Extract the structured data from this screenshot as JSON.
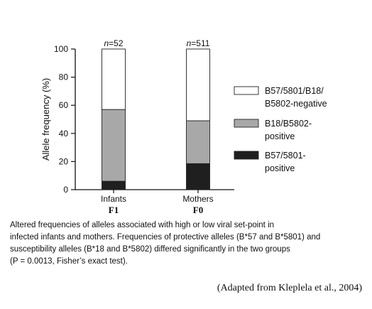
{
  "chart_data": {
    "type": "bar",
    "stacked": true,
    "ylabel": "Allele frequency (%)",
    "ylim": [
      0,
      100
    ],
    "yticks": [
      "0",
      "20",
      "40",
      "60",
      "80",
      "100"
    ],
    "categories": [
      "Infants",
      "Mothers"
    ],
    "category_sublabels": [
      "F1",
      "F0"
    ],
    "bar_annotations": [
      "n=52",
      "n=511"
    ],
    "series": [
      {
        "name": "B57/5801-positive",
        "legend_lines": [
          "B57/5801-",
          "positive"
        ],
        "color": "#1f1f1f",
        "values": [
          6,
          18.5
        ]
      },
      {
        "name": "B18/B5802-positive",
        "legend_lines": [
          "B18/B5802-",
          "positive"
        ],
        "color": "#a8a8a8",
        "values": [
          51,
          30.5
        ]
      },
      {
        "name": "B57/5801/B18/B5802-negative",
        "legend_lines": [
          "B57/5801/B18/",
          "B5802-negative"
        ],
        "color": "#ffffff",
        "values": [
          43,
          51
        ]
      }
    ],
    "legend_position": "right",
    "grid": false
  },
  "caption": {
    "lines": [
      "Altered frequencies of alleles associated with high or low viral set-point in",
      "infected infants and mothers. Frequencies of protective alleles (B*57 and B*5801) and",
      "susceptibility alleles (B*18 and B*5802) differed significantly in the two groups",
      "(P = 0.0013, Fisher’s exact test)."
    ]
  },
  "source": "(Adapted from Kleplela et al., 2004)"
}
